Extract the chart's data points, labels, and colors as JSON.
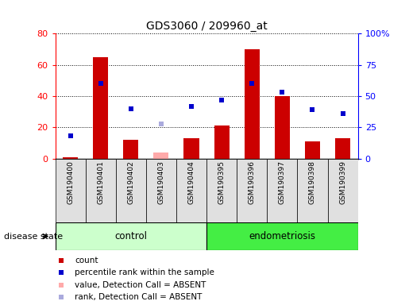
{
  "title": "GDS3060 / 209960_at",
  "samples": [
    "GSM190400",
    "GSM190401",
    "GSM190402",
    "GSM190403",
    "GSM190404",
    "GSM190395",
    "GSM190396",
    "GSM190397",
    "GSM190398",
    "GSM190399"
  ],
  "bar_values": [
    1,
    65,
    12,
    0,
    13,
    21,
    70,
    40,
    11,
    13
  ],
  "bar_absent": [
    false,
    false,
    false,
    true,
    false,
    false,
    false,
    false,
    false,
    false
  ],
  "absent_bar_values": [
    0,
    0,
    0,
    4,
    0,
    0,
    0,
    0,
    0,
    0
  ],
  "rank_values": [
    18,
    60,
    40,
    28,
    42,
    47,
    60,
    53,
    39,
    36
  ],
  "rank_absent_flags": [
    false,
    false,
    false,
    true,
    false,
    false,
    false,
    false,
    false,
    false
  ],
  "absent_rank_values": [
    0,
    0,
    0,
    28,
    0,
    0,
    0,
    0,
    0,
    0
  ],
  "bar_color": "#cc0000",
  "absent_bar_color": "#ffaaaa",
  "rank_color": "#0000cc",
  "absent_rank_color": "#aaaadd",
  "ylim_left": [
    0,
    80
  ],
  "ylim_right": [
    0,
    100
  ],
  "yticks_left": [
    0,
    20,
    40,
    60,
    80
  ],
  "yticks_right": [
    0,
    25,
    50,
    75,
    100
  ],
  "ytick_labels_right": [
    "0",
    "25",
    "50",
    "75",
    "100%"
  ],
  "control_color": "#ccffcc",
  "endometriosis_color": "#44ee44",
  "group_label": "disease state",
  "n_control": 5,
  "n_endo": 5,
  "legend_items": [
    {
      "label": "count",
      "color": "#cc0000"
    },
    {
      "label": "percentile rank within the sample",
      "color": "#0000cc"
    },
    {
      "label": "value, Detection Call = ABSENT",
      "color": "#ffaaaa"
    },
    {
      "label": "rank, Detection Call = ABSENT",
      "color": "#aaaadd"
    }
  ]
}
